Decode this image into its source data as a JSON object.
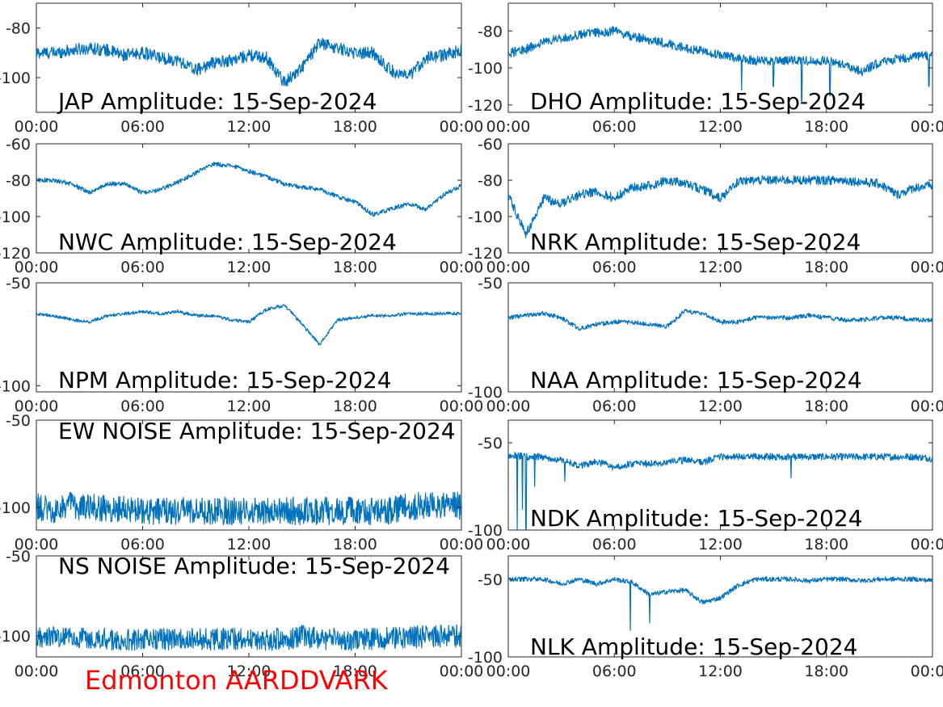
{
  "footer": "Edmonton AARDDVARK",
  "colors": {
    "signal": "#0072bd",
    "footer": "#ff0000",
    "axis": "#262626"
  },
  "chart_data": [
    {
      "type": "line",
      "title": "JAP Amplitude: 15-Sep-2024",
      "xticks": [
        "00:00",
        "06:00",
        "12:00",
        "18:00",
        "00:00"
      ],
      "xlim": [
        0,
        24
      ],
      "ylim": [
        -114,
        -70
      ],
      "yticks": [
        -80,
        -100
      ],
      "grid": false,
      "x": [
        0,
        1,
        2,
        3,
        4,
        5,
        6,
        7,
        8,
        9,
        10,
        11,
        12,
        13,
        14,
        15,
        16,
        17,
        18,
        19,
        20,
        21,
        22,
        23,
        24
      ],
      "series": [
        {
          "values": [
            -90,
            -90,
            -89,
            -88,
            -89,
            -91,
            -90,
            -92,
            -93,
            -97,
            -94,
            -93,
            -91,
            -92,
            -102,
            -96,
            -86,
            -88,
            -90,
            -90,
            -97,
            -100,
            -92,
            -91,
            -89
          ],
          "noise": 2.5
        }
      ]
    },
    {
      "type": "line",
      "title": "DHO Amplitude: 15-Sep-2024",
      "xticks": [
        "00:00",
        "06:00",
        "12:00",
        "18:00",
        "00:00"
      ],
      "xlim": [
        0,
        24
      ],
      "ylim": [
        -124,
        -65
      ],
      "yticks": [
        -80,
        -100,
        -120
      ],
      "grid": false,
      "x": [
        0,
        1,
        2,
        3,
        4,
        5,
        6,
        7,
        8,
        9,
        10,
        11,
        12,
        13,
        14,
        15,
        16,
        17,
        18,
        19,
        20,
        21,
        22,
        23,
        24
      ],
      "series": [
        {
          "values": [
            -92,
            -90,
            -86,
            -84,
            -82,
            -81,
            -80,
            -83,
            -85,
            -87,
            -89,
            -91,
            -93,
            -95,
            -96,
            -96,
            -96,
            -96,
            -96,
            -98,
            -102,
            -97,
            -95,
            -94,
            -93
          ],
          "noise": 2.5,
          "spikes": [
            [
              13.2,
              -112
            ],
            [
              15.0,
              -110
            ],
            [
              16.6,
              -118
            ],
            [
              18.2,
              -115
            ],
            [
              23.8,
              -110
            ]
          ]
        }
      ]
    },
    {
      "type": "line",
      "title": "NWC Amplitude: 15-Sep-2024",
      "xticks": [
        "00:00",
        "06:00",
        "12:00",
        "18:00",
        "00:00"
      ],
      "xlim": [
        0,
        24
      ],
      "ylim": [
        -120,
        -60
      ],
      "yticks": [
        -60,
        -80,
        -100,
        -120
      ],
      "grid": false,
      "x": [
        0,
        1,
        2,
        3,
        4,
        5,
        6,
        7,
        8,
        9,
        10,
        11,
        12,
        13,
        14,
        15,
        16,
        17,
        18,
        19,
        20,
        21,
        22,
        23,
        24
      ],
      "series": [
        {
          "values": [
            -80,
            -80,
            -82,
            -87,
            -82,
            -82,
            -87,
            -85,
            -81,
            -76,
            -71,
            -72,
            -75,
            -78,
            -82,
            -84,
            -85,
            -89,
            -92,
            -99,
            -96,
            -93,
            -96,
            -88,
            -83
          ],
          "noise": 1.2
        }
      ]
    },
    {
      "type": "line",
      "title": "NRK Amplitude: 15-Sep-2024",
      "xticks": [
        "00:00",
        "06:00",
        "12:00",
        "18:00",
        "00:00"
      ],
      "xlim": [
        0,
        24
      ],
      "ylim": [
        -120,
        -60
      ],
      "yticks": [
        -60,
        -80,
        -100,
        -120
      ],
      "grid": false,
      "x": [
        0,
        1,
        2,
        3,
        4,
        5,
        6,
        7,
        8,
        9,
        10,
        11,
        12,
        13,
        14,
        15,
        16,
        17,
        18,
        19,
        20,
        21,
        22,
        23,
        24
      ],
      "series": [
        {
          "values": [
            -88,
            -110,
            -90,
            -93,
            -88,
            -86,
            -90,
            -84,
            -83,
            -80,
            -82,
            -85,
            -90,
            -81,
            -80,
            -80,
            -80,
            -80,
            -80,
            -80,
            -81,
            -82,
            -88,
            -84,
            -83
          ],
          "noise": 2.5
        }
      ]
    },
    {
      "type": "line",
      "title": "NPM Amplitude: 15-Sep-2024",
      "xticks": [
        "00:00",
        "06:00",
        "12:00",
        "18:00",
        "00:00"
      ],
      "xlim": [
        0,
        24
      ],
      "ylim": [
        -103,
        -50
      ],
      "yticks": [
        -50,
        -100
      ],
      "grid": false,
      "x": [
        0,
        1,
        2,
        3,
        4,
        5,
        6,
        7,
        8,
        9,
        10,
        11,
        12,
        13,
        14,
        15,
        16,
        17,
        18,
        19,
        20,
        21,
        22,
        23,
        24
      ],
      "series": [
        {
          "values": [
            -65,
            -66,
            -68,
            -69,
            -66,
            -65,
            -64,
            -65,
            -64,
            -66,
            -66,
            -68,
            -69,
            -63,
            -61,
            -70,
            -80,
            -68,
            -67,
            -66,
            -66,
            -65,
            -65,
            -65,
            -65
          ],
          "noise": 0.8
        }
      ]
    },
    {
      "type": "line",
      "title": "NAA Amplitude: 15-Sep-2024",
      "xticks": [
        "00:00",
        "06:00",
        "12:00",
        "18:00",
        "00:00"
      ],
      "xlim": [
        0,
        24
      ],
      "ylim": [
        -100,
        -50
      ],
      "yticks": [
        -50,
        -100
      ],
      "grid": false,
      "x": [
        0,
        1,
        2,
        3,
        4,
        5,
        6,
        7,
        8,
        9,
        10,
        11,
        12,
        13,
        14,
        15,
        16,
        17,
        18,
        19,
        20,
        21,
        22,
        23,
        24
      ],
      "series": [
        {
          "values": [
            -66,
            -65,
            -64,
            -66,
            -71,
            -69,
            -68,
            -68,
            -69,
            -70,
            -63,
            -64,
            -68,
            -68,
            -66,
            -66,
            -66,
            -65,
            -66,
            -67,
            -67,
            -66,
            -66,
            -67,
            -67
          ],
          "noise": 1.0
        }
      ]
    },
    {
      "type": "line",
      "title": "EW NOISE Amplitude: 15-Sep-2024",
      "xticks": [
        "00:00",
        "06:00",
        "12:00",
        "18:00",
        "00:00"
      ],
      "xlim": [
        0,
        24
      ],
      "ylim": [
        -113,
        -50
      ],
      "yticks": [
        -50,
        -100
      ],
      "grid": false,
      "x": [
        0,
        1,
        2,
        3,
        4,
        5,
        6,
        7,
        8,
        9,
        10,
        11,
        12,
        13,
        14,
        15,
        16,
        17,
        18,
        19,
        20,
        21,
        22,
        23,
        24
      ],
      "series": [
        {
          "values": [
            -100,
            -101,
            -99,
            -100,
            -101,
            -101,
            -102,
            -102,
            -102,
            -102,
            -102,
            -102,
            -102,
            -102,
            -102,
            -102,
            -102,
            -102,
            -102,
            -102,
            -102,
            -100,
            -99,
            -99,
            -99
          ],
          "noise": 8
        }
      ]
    },
    {
      "type": "line",
      "title": "NDK Amplitude: 15-Sep-2024",
      "xticks": [
        "00:00",
        "06:00",
        "12:00",
        "18:00",
        "00:00"
      ],
      "xlim": [
        0,
        24
      ],
      "ylim": [
        -100,
        -37
      ],
      "yticks": [
        -50,
        -100
      ],
      "grid": false,
      "x": [
        0,
        1,
        2,
        3,
        4,
        5,
        6,
        7,
        8,
        9,
        10,
        11,
        12,
        13,
        14,
        15,
        16,
        17,
        18,
        19,
        20,
        21,
        22,
        23,
        24
      ],
      "series": [
        {
          "values": [
            -57,
            -58,
            -58,
            -60,
            -63,
            -61,
            -64,
            -62,
            -62,
            -61,
            -60,
            -61,
            -58,
            -58,
            -58,
            -58,
            -58,
            -58,
            -58,
            -58,
            -58,
            -58,
            -58,
            -58,
            -59
          ],
          "noise": 2.0,
          "spikes": [
            [
              0.5,
              -100
            ],
            [
              0.8,
              -88
            ],
            [
              1.0,
              -100
            ],
            [
              1.5,
              -75
            ],
            [
              3.2,
              -72
            ],
            [
              16.0,
              -70
            ]
          ]
        }
      ]
    },
    {
      "type": "line",
      "title": "NS NOISE Amplitude: 15-Sep-2024",
      "xticks": [
        "00:00",
        "06:00",
        "12:00",
        "18:00",
        "00:00"
      ],
      "xlim": [
        0,
        24
      ],
      "ylim": [
        -113,
        -50
      ],
      "yticks": [
        -50,
        -100
      ],
      "grid": false,
      "x": [
        0,
        1,
        2,
        3,
        4,
        5,
        6,
        7,
        8,
        9,
        10,
        11,
        12,
        13,
        14,
        15,
        16,
        17,
        18,
        19,
        20,
        21,
        22,
        23,
        24
      ],
      "series": [
        {
          "values": [
            -100,
            -100,
            -101,
            -101,
            -102,
            -102,
            -102,
            -102,
            -102,
            -102,
            -102,
            -102,
            -102,
            -102,
            -102,
            -100,
            -102,
            -102,
            -102,
            -102,
            -101,
            -101,
            -100,
            -100,
            -100
          ],
          "noise": 7
        }
      ]
    },
    {
      "type": "line",
      "title": "NLK Amplitude: 15-Sep-2024",
      "xticks": [
        "00:00",
        "06:00",
        "12:00",
        "18:00",
        "00:00"
      ],
      "xlim": [
        0,
        24
      ],
      "ylim": [
        -100,
        -35
      ],
      "yticks": [
        -50,
        -100
      ],
      "grid": false,
      "x": [
        0,
        1,
        2,
        3,
        4,
        5,
        6,
        7,
        8,
        9,
        10,
        11,
        12,
        13,
        14,
        15,
        16,
        17,
        18,
        19,
        20,
        21,
        22,
        23,
        24
      ],
      "series": [
        {
          "values": [
            -50,
            -50,
            -50,
            -53,
            -50,
            -53,
            -50,
            -52,
            -60,
            -58,
            -57,
            -65,
            -62,
            -54,
            -50,
            -50,
            -50,
            -51,
            -50,
            -50,
            -51,
            -50,
            -50,
            -50,
            -51
          ],
          "noise": 1.5,
          "spikes": [
            [
              6.9,
              -83
            ],
            [
              8.0,
              -78
            ]
          ]
        }
      ]
    }
  ]
}
